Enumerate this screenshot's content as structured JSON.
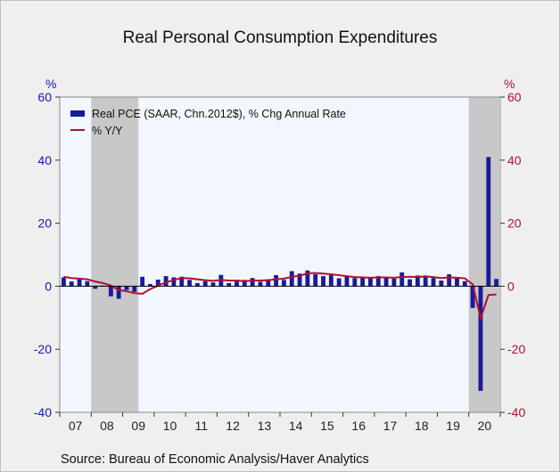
{
  "title": "Real Personal Consumption Expenditures",
  "source": "Source:  Bureau of Economic Analysis/Haver Analytics",
  "colors": {
    "bar": "#1a1a9a",
    "line": "#b01030",
    "plot_bg": "#f2f7fd",
    "recession": "#c8c8c8",
    "left_axis": "#1515b4",
    "right_axis": "#b01030"
  },
  "chart_data": {
    "type": "bar",
    "title": "Real Personal Consumption Expenditures",
    "left_axis": {
      "unit": "%",
      "ylim": [
        -40,
        60
      ],
      "ticks": [
        60,
        40,
        20,
        0,
        -20,
        -40
      ]
    },
    "right_axis": {
      "unit": "%",
      "ylim": [
        -40,
        60
      ],
      "ticks": [
        60,
        40,
        20,
        0,
        -20,
        -40
      ]
    },
    "x_labels": [
      "07",
      "08",
      "09",
      "10",
      "11",
      "12",
      "13",
      "14",
      "15",
      "16",
      "17",
      "18",
      "19",
      "20"
    ],
    "x_start": "2007Q1",
    "recessions": [
      [
        "2008Q1",
        "2009Q2"
      ],
      [
        "2020Q1",
        "2020Q4"
      ]
    ],
    "series": [
      {
        "name": "Real PCE (SAAR, Chn.2012$), % Chg Annual Rate",
        "type": "bar",
        "axis": "left",
        "values": [
          2.8,
          1.5,
          2.2,
          1.6,
          -0.8,
          0.2,
          -3.2,
          -4.0,
          -1.2,
          -1.8,
          3.0,
          0.7,
          2.1,
          3.2,
          2.8,
          3.0,
          2.0,
          1.0,
          1.6,
          1.2,
          3.6,
          1.0,
          1.5,
          2.0,
          2.6,
          1.4,
          2.2,
          3.5,
          2.0,
          4.8,
          4.0,
          5.0,
          3.8,
          3.2,
          3.5,
          2.5,
          3.0,
          2.6,
          2.8,
          2.8,
          3.2,
          2.6,
          2.4,
          4.4,
          2.2,
          3.4,
          3.4,
          2.6,
          1.8,
          3.8,
          2.8,
          1.6,
          -6.9,
          -33.2,
          41.0,
          2.3
        ]
      },
      {
        "name": "% Y/Y",
        "type": "line",
        "axis": "right",
        "values": [
          3.0,
          2.6,
          2.4,
          2.2,
          1.5,
          1.0,
          0.2,
          -1.2,
          -1.6,
          -2.2,
          -2.4,
          -0.9,
          0.2,
          1.2,
          2.0,
          2.6,
          2.5,
          2.2,
          1.9,
          1.7,
          2.0,
          1.8,
          1.8,
          1.6,
          1.8,
          1.8,
          1.9,
          2.2,
          2.4,
          3.0,
          3.3,
          4.1,
          4.2,
          4.0,
          3.8,
          3.5,
          3.2,
          2.9,
          2.8,
          2.7,
          2.8,
          2.8,
          2.7,
          2.9,
          3.0,
          2.9,
          3.1,
          2.9,
          2.6,
          2.8,
          2.7,
          2.5,
          0.6,
          -10.2,
          -2.8,
          -2.6
        ]
      }
    ]
  }
}
